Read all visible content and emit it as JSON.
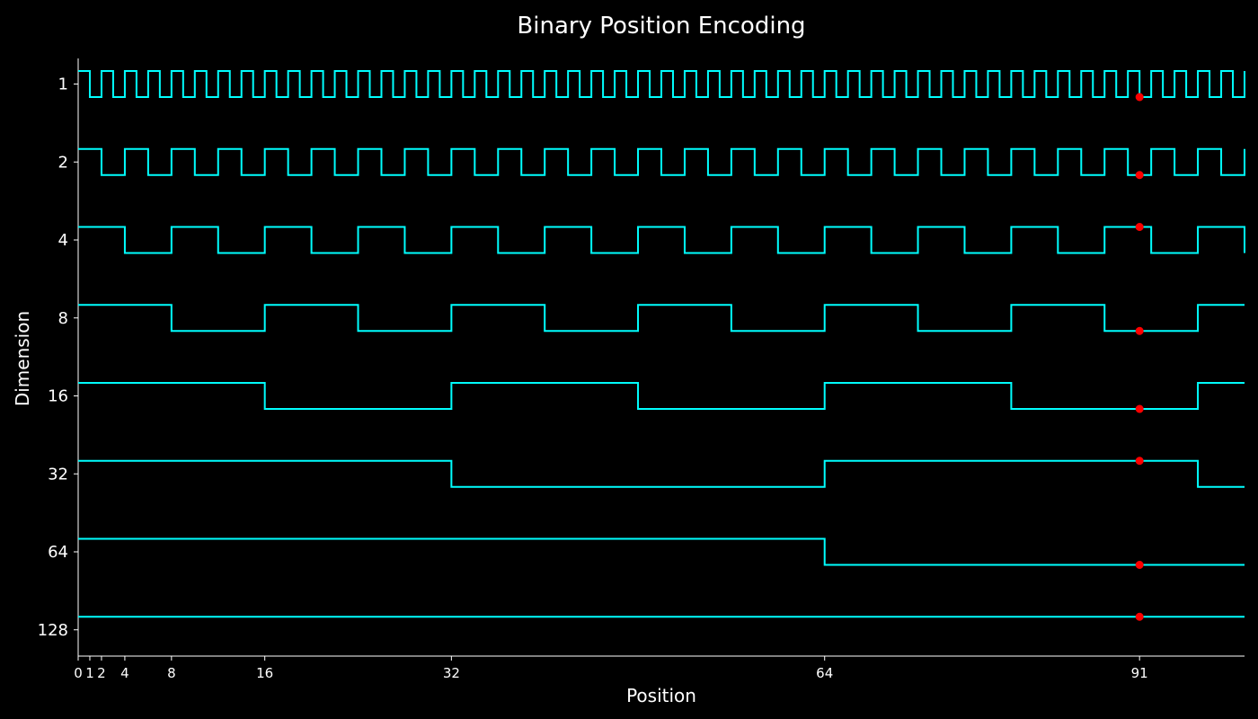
{
  "chart_data": {
    "type": "line",
    "title": "Binary Position Encoding",
    "xlabel": "Position",
    "ylabel": "Dimension",
    "x_range": [
      0,
      100
    ],
    "x_ticks": [
      0,
      1,
      2,
      4,
      8,
      16,
      32,
      64,
      91
    ],
    "y_ticks": [
      "1",
      "2",
      "4",
      "8",
      "16",
      "32",
      "64",
      "128"
    ],
    "series": [
      {
        "period": 1
      },
      {
        "period": 2
      },
      {
        "period": 4
      },
      {
        "period": 8
      },
      {
        "period": 16
      },
      {
        "period": 32
      },
      {
        "period": 64
      },
      {
        "period": 128
      }
    ],
    "highlight_position": 91,
    "grid": false,
    "line_color": "#00ffff",
    "marker_color": "#ff0000",
    "axis_color": "#ffffff",
    "background_color": "#000000"
  }
}
